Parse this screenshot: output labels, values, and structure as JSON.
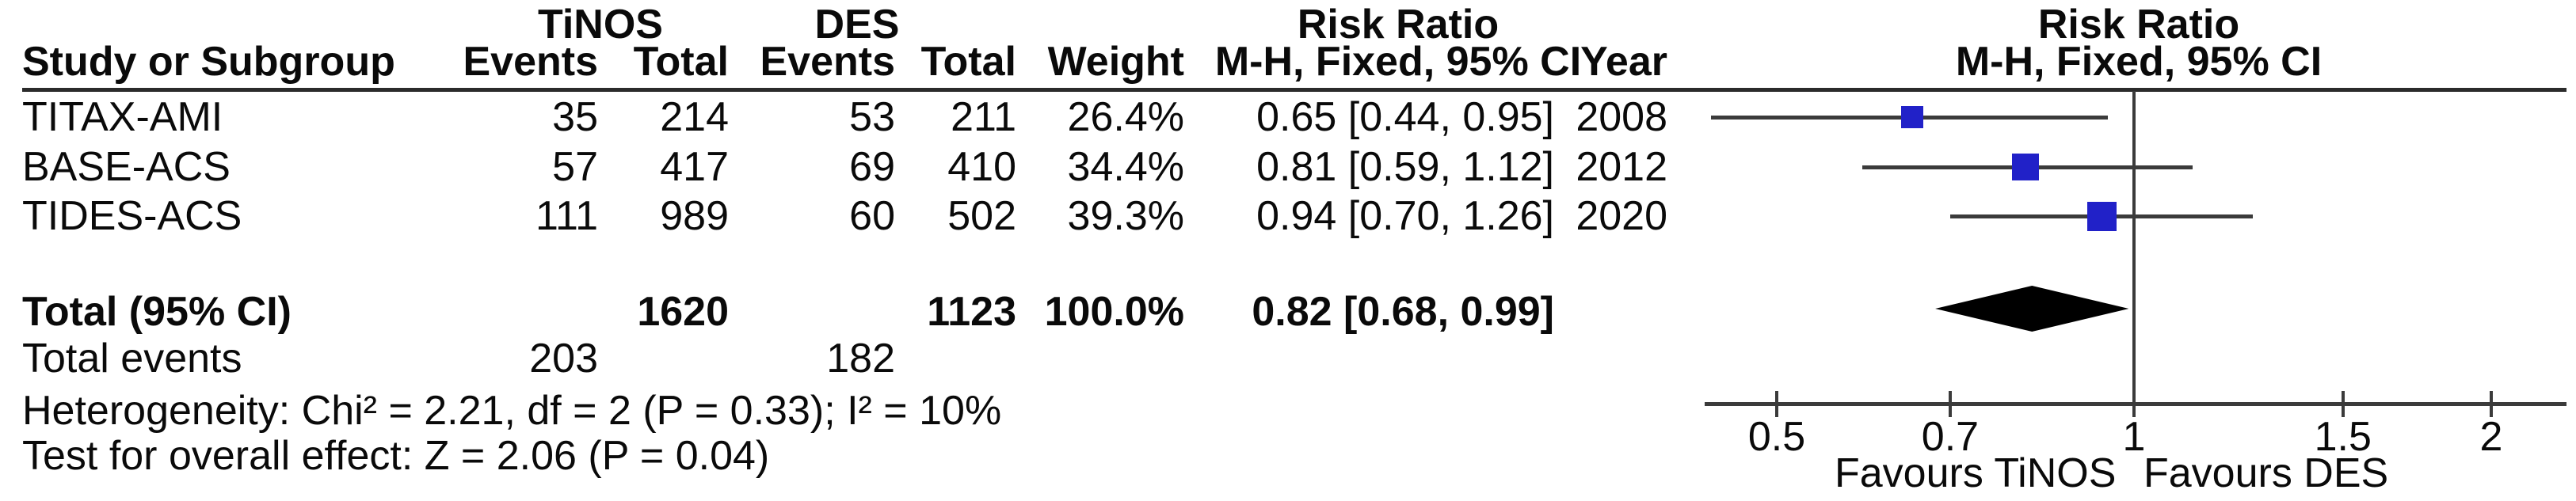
{
  "table": {
    "group_headers": {
      "tinos": "TiNOS",
      "des": "DES",
      "risk_ratio": "Risk Ratio"
    },
    "columns": {
      "study": "Study or Subgroup",
      "events": "Events",
      "total": "Total",
      "weight": "Weight",
      "mh_ci": "M-H, Fixed, 95% CI",
      "year": "Year"
    },
    "rows": [
      {
        "study": "TITAX-AMI",
        "tinos_events": "35",
        "tinos_total": "214",
        "des_events": "53",
        "des_total": "211",
        "weight": "26.4%",
        "rr_ci": "0.65 [0.44, 0.95]",
        "year": "2008"
      },
      {
        "study": "BASE-ACS",
        "tinos_events": "57",
        "tinos_total": "417",
        "des_events": "69",
        "des_total": "410",
        "weight": "34.4%",
        "rr_ci": "0.81 [0.59, 1.12]",
        "year": "2012"
      },
      {
        "study": "TIDES-ACS",
        "tinos_events": "111",
        "tinos_total": "989",
        "des_events": "60",
        "des_total": "502",
        "weight": "39.3%",
        "rr_ci": "0.94 [0.70, 1.26]",
        "year": "2020"
      }
    ],
    "total_row": {
      "label": "Total (95% CI)",
      "tinos_total": "1620",
      "des_total": "1123",
      "weight": "100.0%",
      "rr_ci": "0.82 [0.68, 0.99]"
    },
    "total_events_row": {
      "label": "Total events",
      "tinos": "203",
      "des": "182"
    },
    "heterogeneity": "Heterogeneity: Chi² = 2.21, df = 2 (P = 0.33); I² = 10%",
    "overall_effect": "Test for overall effect: Z = 2.06 (P = 0.04)"
  },
  "plot": {
    "header_line1": "Risk Ratio",
    "header_line2": "M-H, Fixed, 95% CI",
    "favours_left": "Favours TiNOS",
    "favours_right": "Favours DES",
    "marker_color": "#2121c8",
    "line_color": "#3b3b3b",
    "diamond_color": "#000000"
  },
  "chart_data": {
    "type": "scatter",
    "subtype": "forest-plot",
    "title": "Risk Ratio",
    "effect_measure": "M-H, Fixed, 95% CI",
    "x_scale": "log",
    "x_ticks": [
      0.5,
      0.7,
      1,
      1.5,
      2
    ],
    "xlim": [
      0.43,
      2.3
    ],
    "reference_line": 1,
    "studies": [
      {
        "name": "TITAX-AMI",
        "rr": 0.65,
        "ci_low": 0.44,
        "ci_high": 0.95,
        "weight_pct": 26.4,
        "year": 2008
      },
      {
        "name": "BASE-ACS",
        "rr": 0.81,
        "ci_low": 0.59,
        "ci_high": 1.12,
        "weight_pct": 34.4,
        "year": 2012
      },
      {
        "name": "TIDES-ACS",
        "rr": 0.94,
        "ci_low": 0.7,
        "ci_high": 1.26,
        "weight_pct": 39.3,
        "year": 2020
      }
    ],
    "total": {
      "rr": 0.82,
      "ci_low": 0.68,
      "ci_high": 0.99,
      "weight_pct": 100.0
    },
    "xlabel_left": "Favours TiNOS",
    "xlabel_right": "Favours DES"
  }
}
